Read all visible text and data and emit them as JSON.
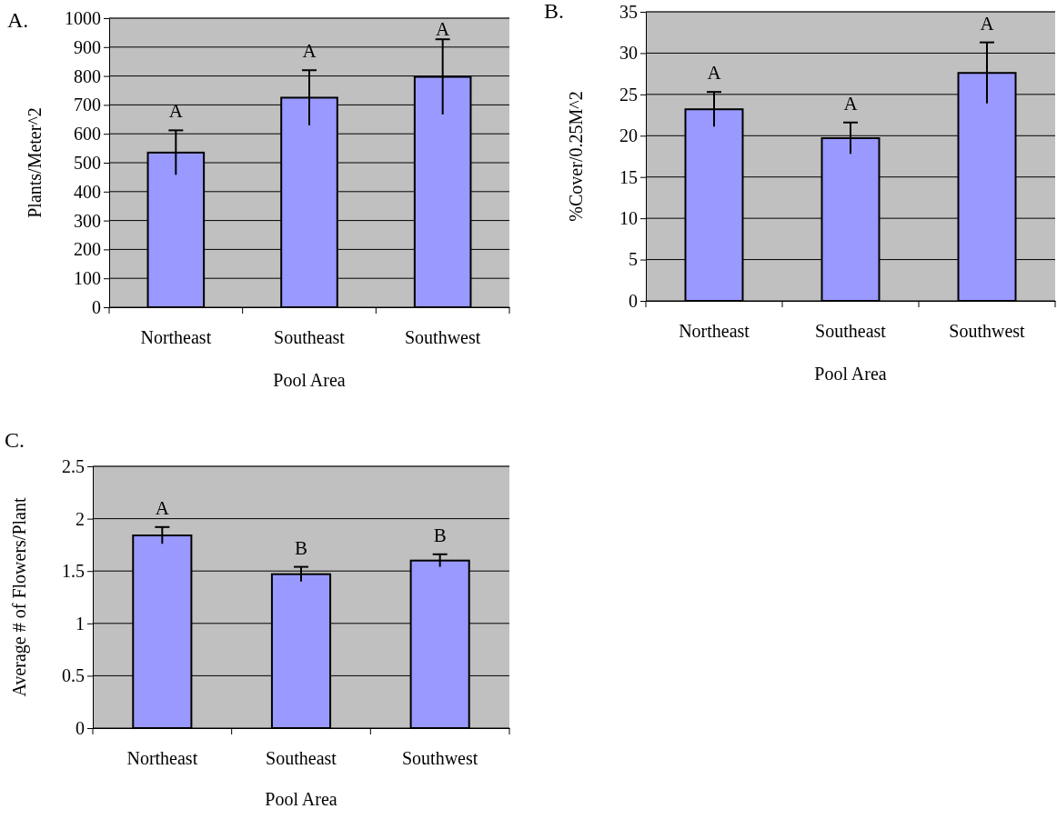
{
  "chart_data": [
    {
      "type": "bar",
      "title": "A.",
      "xlabel": "Pool Area",
      "ylabel": "Plants/Meter^2",
      "categories": [
        "Northeast",
        "Southeast",
        "Southwest"
      ],
      "values": [
        535,
        725,
        797
      ],
      "errors": [
        77,
        95,
        130
      ],
      "color": "#9999ff",
      "ylim": [
        0,
        1000
      ],
      "yticks": [
        0,
        100,
        200,
        300,
        400,
        500,
        600,
        700,
        800,
        900,
        1000
      ],
      "grid": "y",
      "annotations": [
        "A",
        "A",
        "A"
      ]
    },
    {
      "type": "bar",
      "title": "B.",
      "xlabel": "Pool Area",
      "ylabel": "%Cover/0.25M^2",
      "categories": [
        "Northeast",
        "Southeast",
        "Southwest"
      ],
      "values": [
        23.2,
        19.7,
        27.6
      ],
      "errors": [
        2.1,
        1.9,
        3.7
      ],
      "color": "#9999ff",
      "ylim": [
        0,
        35
      ],
      "yticks": [
        0,
        5,
        10,
        15,
        20,
        25,
        30,
        35
      ],
      "grid": "y",
      "annotations": [
        "A",
        "A",
        "A"
      ]
    },
    {
      "type": "bar",
      "title": "C.",
      "xlabel": "Pool Area",
      "ylabel": "Average # of Flowers/Plant",
      "categories": [
        "Northeast",
        "Southeast",
        "Southwest"
      ],
      "values": [
        1.84,
        1.47,
        1.6
      ],
      "errors": [
        0.08,
        0.07,
        0.06
      ],
      "color": "#9999ff",
      "ylim": [
        0,
        2.5
      ],
      "yticks": [
        0,
        0.5,
        1,
        1.5,
        2,
        2.5
      ],
      "grid": "y",
      "annotations": [
        "A",
        "B",
        "B"
      ]
    }
  ]
}
